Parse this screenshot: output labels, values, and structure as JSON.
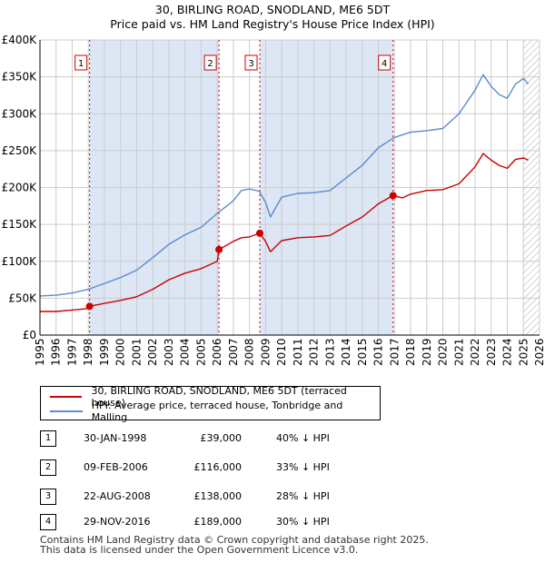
{
  "title_line1": "30, BIRLING ROAD, SNODLAND, ME6 5DT",
  "title_line2": "Price paid vs. HM Land Registry's House Price Index (HPI)",
  "legend": {
    "property_label": "30, BIRLING ROAD, SNODLAND, ME6 5DT (terraced house)",
    "hpi_label": "HPI: Average price, terraced house, Tonbridge and Malling"
  },
  "colors": {
    "property": "#cc0000",
    "hpi": "#5b8ccc",
    "shade": "#dde6f5",
    "grid": "#cccccc"
  },
  "sales": [
    {
      "num": "1",
      "date": "30-JAN-1998",
      "price": "£39,000",
      "hpi": "40% ↓ HPI"
    },
    {
      "num": "2",
      "date": "09-FEB-2006",
      "price": "£116,000",
      "hpi": "33% ↓ HPI"
    },
    {
      "num": "3",
      "date": "22-AUG-2008",
      "price": "£138,000",
      "hpi": "28% ↓ HPI"
    },
    {
      "num": "4",
      "date": "29-NOV-2016",
      "price": "£189,000",
      "hpi": "30% ↓ HPI"
    }
  ],
  "footer_line1": "Contains HM Land Registry data © Crown copyright and database right 2025.",
  "footer_line2": "This data is licensed under the Open Government Licence v3.0.",
  "chart_data": {
    "type": "line",
    "title": "30, BIRLING ROAD, SNODLAND, ME6 5DT — Price paid vs. HM Land Registry's House Price Index (HPI)",
    "xlabel": "",
    "ylabel": "",
    "xlim": [
      1995,
      2026
    ],
    "ylim": [
      0,
      400000
    ],
    "x_ticks": [
      1995,
      1996,
      1997,
      1998,
      1999,
      2000,
      2001,
      2002,
      2003,
      2004,
      2005,
      2006,
      2007,
      2008,
      2009,
      2010,
      2011,
      2012,
      2013,
      2014,
      2015,
      2016,
      2017,
      2018,
      2019,
      2020,
      2021,
      2022,
      2023,
      2024,
      2025,
      2026
    ],
    "y_ticks": [
      0,
      50000,
      100000,
      150000,
      200000,
      250000,
      300000,
      350000,
      400000
    ],
    "y_tick_labels": [
      "£0",
      "£50K",
      "£100K",
      "£150K",
      "£200K",
      "£250K",
      "£300K",
      "£350K",
      "£400K"
    ],
    "grid": true,
    "sale_markers": [
      {
        "label": "1",
        "x": 1998.08,
        "y": 39000
      },
      {
        "label": "2",
        "x": 2006.11,
        "y": 116000
      },
      {
        "label": "3",
        "x": 2008.64,
        "y": 138000
      },
      {
        "label": "4",
        "x": 2016.91,
        "y": 189000
      }
    ],
    "shaded_spans": [
      [
        1998.08,
        2006.11
      ],
      [
        2008.64,
        2016.91
      ]
    ],
    "future_hatch_from": 2025.0,
    "series": [
      {
        "name": "30, BIRLING ROAD, SNODLAND, ME6 5DT (terraced house)",
        "x": [
          1995.0,
          1996.0,
          1997.0,
          1998.0,
          1998.08,
          1999.0,
          2000.0,
          2001.0,
          2002.0,
          2003.0,
          2004.0,
          2005.0,
          2006.0,
          2006.11,
          2007.0,
          2007.5,
          2008.0,
          2008.64,
          2009.0,
          2009.3,
          2010.0,
          2011.0,
          2012.0,
          2013.0,
          2014.0,
          2015.0,
          2016.0,
          2016.91,
          2017.5,
          2018.0,
          2019.0,
          2020.0,
          2021.0,
          2022.0,
          2022.5,
          2023.0,
          2023.5,
          2024.0,
          2024.5,
          2025.0,
          2025.3
        ],
        "values": [
          32000,
          32000,
          34000,
          36000,
          39000,
          43000,
          47000,
          52000,
          62000,
          75000,
          84000,
          90000,
          100000,
          116000,
          127000,
          132000,
          133000,
          138000,
          127000,
          113000,
          128000,
          132000,
          133000,
          135000,
          148000,
          160000,
          178000,
          189000,
          186000,
          191000,
          196000,
          197000,
          205000,
          228000,
          246000,
          237000,
          230000,
          226000,
          238000,
          240000,
          237000
        ]
      },
      {
        "name": "HPI: Average price, terraced house, Tonbridge and Malling",
        "x": [
          1995.0,
          1996.0,
          1997.0,
          1998.0,
          1999.0,
          2000.0,
          2001.0,
          2002.0,
          2003.0,
          2004.0,
          2005.0,
          2006.0,
          2007.0,
          2007.5,
          2008.0,
          2008.6,
          2009.0,
          2009.3,
          2010.0,
          2011.0,
          2012.0,
          2013.0,
          2014.0,
          2015.0,
          2016.0,
          2017.0,
          2018.0,
          2019.0,
          2020.0,
          2021.0,
          2022.0,
          2022.5,
          2023.0,
          2023.5,
          2024.0,
          2024.5,
          2025.0,
          2025.3
        ],
        "values": [
          53000,
          54000,
          57000,
          62000,
          70000,
          78000,
          88000,
          105000,
          123000,
          136000,
          146000,
          165000,
          182000,
          196000,
          198000,
          195000,
          180000,
          160000,
          187000,
          192000,
          193000,
          196000,
          213000,
          230000,
          254000,
          268000,
          275000,
          277000,
          280000,
          300000,
          332000,
          353000,
          337000,
          326000,
          321000,
          340000,
          348000,
          340000
        ]
      }
    ]
  }
}
